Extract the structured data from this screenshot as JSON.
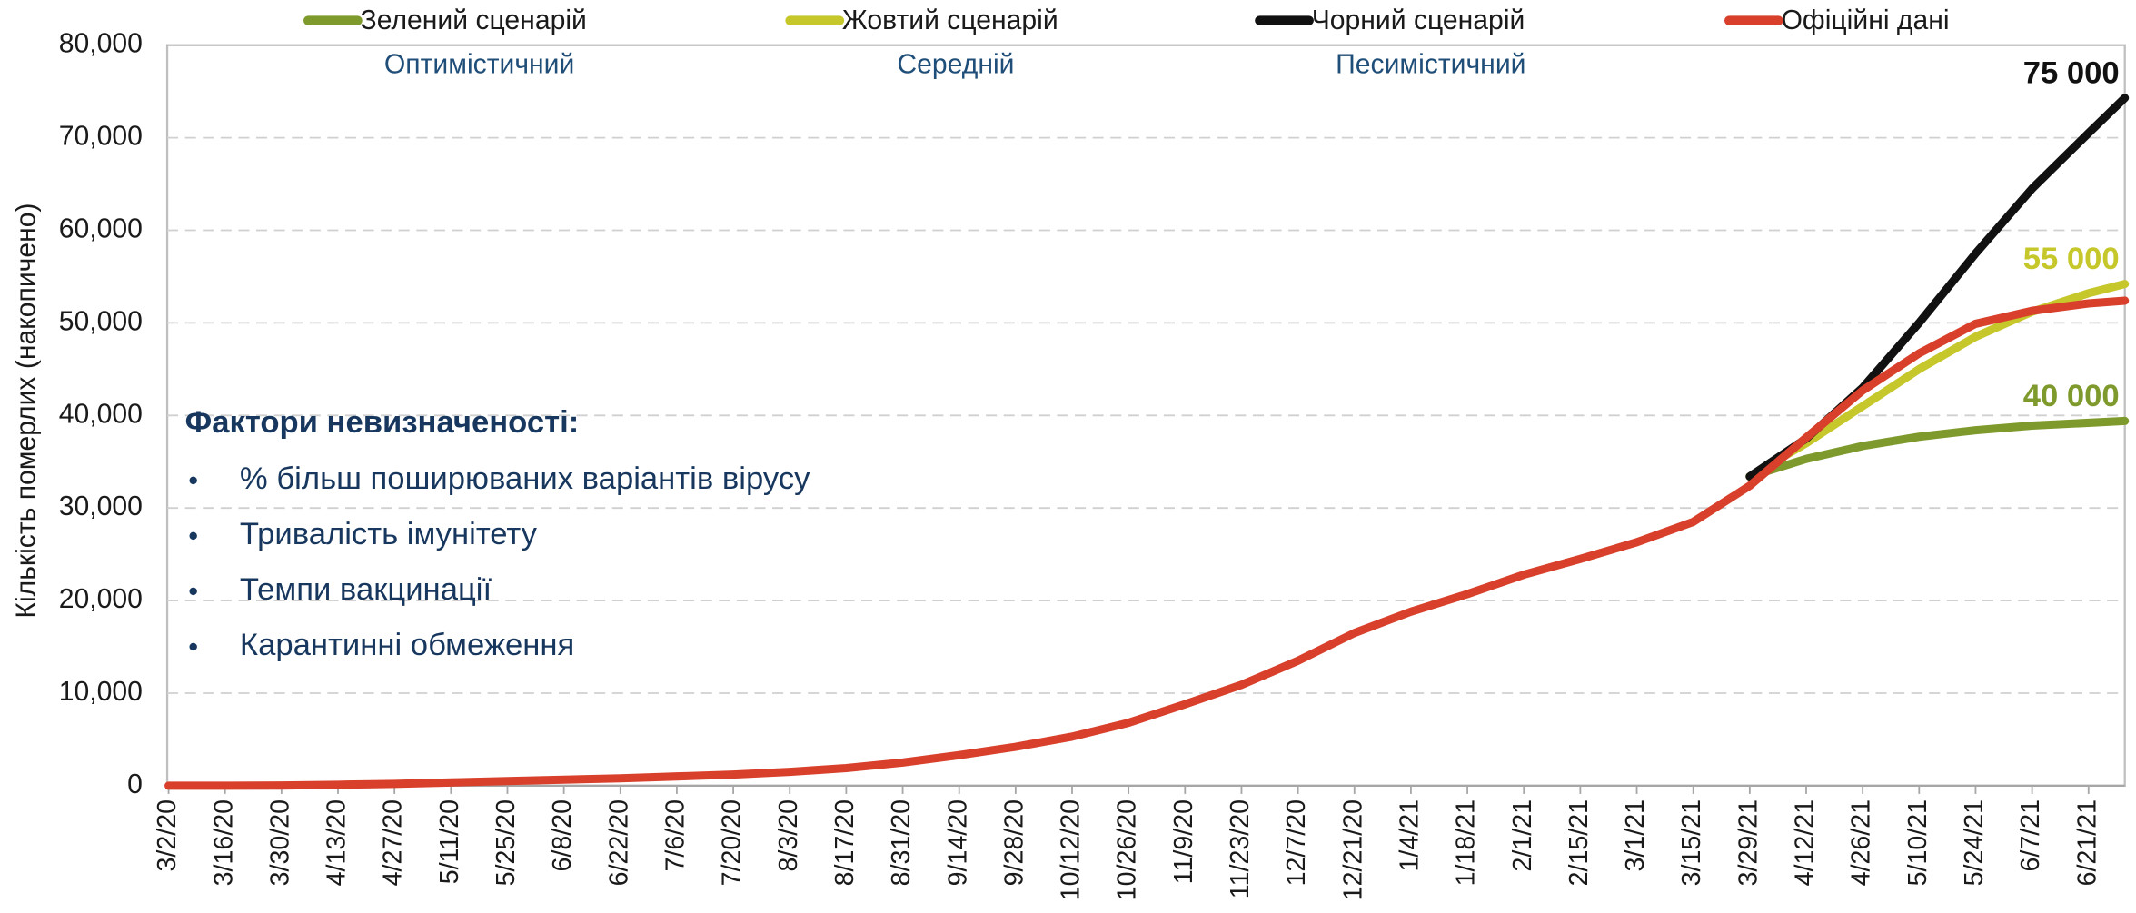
{
  "chart_data": {
    "type": "line",
    "subtitles": [
      "Оптимістичний",
      "Середній",
      "Песимістичний"
    ],
    "y_label": "Кількість померлих (накопичено)",
    "ylim": [
      0,
      80000
    ],
    "yticks": [
      0,
      {
        "value": 10000,
        "label": "10,000"
      },
      {
        "value": 20000,
        "label": "20,000"
      },
      {
        "value": 30000,
        "label": "30,000"
      },
      {
        "value": 40000,
        "label": "40,000"
      },
      {
        "value": 50000,
        "label": "50,000"
      },
      {
        "value": 60000,
        "label": "60,000"
      },
      {
        "value": 70000,
        "label": "70,000"
      },
      {
        "value": 80000,
        "label": "80,000"
      }
    ],
    "xlim": [
      "3/2/20",
      "6/30/21"
    ],
    "xticks": [
      "3/2/20",
      "3/16/20",
      "3/30/20",
      "4/13/20",
      "4/27/20",
      "5/11/20",
      "5/25/20",
      "6/8/20",
      "6/22/20",
      "7/6/20",
      "7/20/20",
      "8/3/20",
      "8/17/20",
      "8/31/20",
      "9/14/20",
      "9/28/20",
      "10/12/20",
      "10/26/20",
      "11/9/20",
      "11/23/20",
      "12/7/20",
      "12/21/20",
      "1/4/21",
      "1/18/21",
      "2/1/21",
      "2/15/21",
      "3/1/21",
      "3/15/21",
      "3/29/21",
      "4/12/21",
      "4/26/21",
      "5/10/21",
      "5/24/21",
      "6/7/21",
      "6/21/21"
    ],
    "grid": true,
    "series": [
      {
        "name": "Зелений сценарій",
        "color": "#7f9a2c",
        "end_label": "40 000",
        "x": [
          "3/29/21",
          "4/12/21",
          "4/26/21",
          "5/10/21",
          "5/24/21",
          "6/7/21",
          "6/21/21",
          "6/30/21"
        ],
        "values": [
          33400,
          35300,
          36700,
          37700,
          38400,
          38900,
          39200,
          39400
        ]
      },
      {
        "name": "Жовтий сценарій",
        "color": "#c5c72b",
        "end_label": "55 000",
        "x": [
          "3/29/21",
          "4/12/21",
          "4/26/21",
          "5/10/21",
          "5/24/21",
          "6/7/21",
          "6/21/21",
          "6/30/21"
        ],
        "values": [
          33400,
          37000,
          41000,
          45000,
          48500,
          51200,
          53200,
          54200
        ]
      },
      {
        "name": "Чорний сценарій",
        "color": "#111111",
        "end_label": "75 000",
        "x": [
          "3/29/21",
          "4/12/21",
          "4/26/21",
          "5/10/21",
          "5/24/21",
          "6/7/21",
          "6/21/21",
          "6/30/21"
        ],
        "values": [
          33400,
          37500,
          43000,
          50000,
          57500,
          64500,
          70500,
          74300
        ]
      },
      {
        "name": "Офіційні дані",
        "color": "#d9402b",
        "x": [
          "3/2/20",
          "3/16/20",
          "3/30/20",
          "4/13/20",
          "4/27/20",
          "5/11/20",
          "5/25/20",
          "6/8/20",
          "6/22/20",
          "7/6/20",
          "7/20/20",
          "8/3/20",
          "8/17/20",
          "8/31/20",
          "9/14/20",
          "9/28/20",
          "10/12/20",
          "10/26/20",
          "11/9/20",
          "11/23/20",
          "12/7/20",
          "12/21/20",
          "1/4/21",
          "1/18/21",
          "2/1/21",
          "2/15/21",
          "3/1/21",
          "3/15/21",
          "3/29/21",
          "4/12/21",
          "4/26/21",
          "5/10/21",
          "5/24/21",
          "6/7/21",
          "6/21/21",
          "6/30/21"
        ],
        "values": [
          0,
          0,
          20,
          100,
          200,
          350,
          500,
          650,
          800,
          1000,
          1200,
          1500,
          1900,
          2500,
          3300,
          4200,
          5300,
          6800,
          8800,
          10900,
          13500,
          16500,
          18800,
          20700,
          22800,
          24500,
          26300,
          28500,
          32400,
          37600,
          42700,
          46700,
          49900,
          51300,
          52100,
          52400
        ]
      }
    ],
    "uncertainty": {
      "title": "Фактори невизначеності:",
      "items": [
        "% більш поширюваних варіантів вірусу",
        "Тривалість імунітету",
        "Темпи вакцинації",
        "Карантинні обмеження"
      ]
    }
  }
}
